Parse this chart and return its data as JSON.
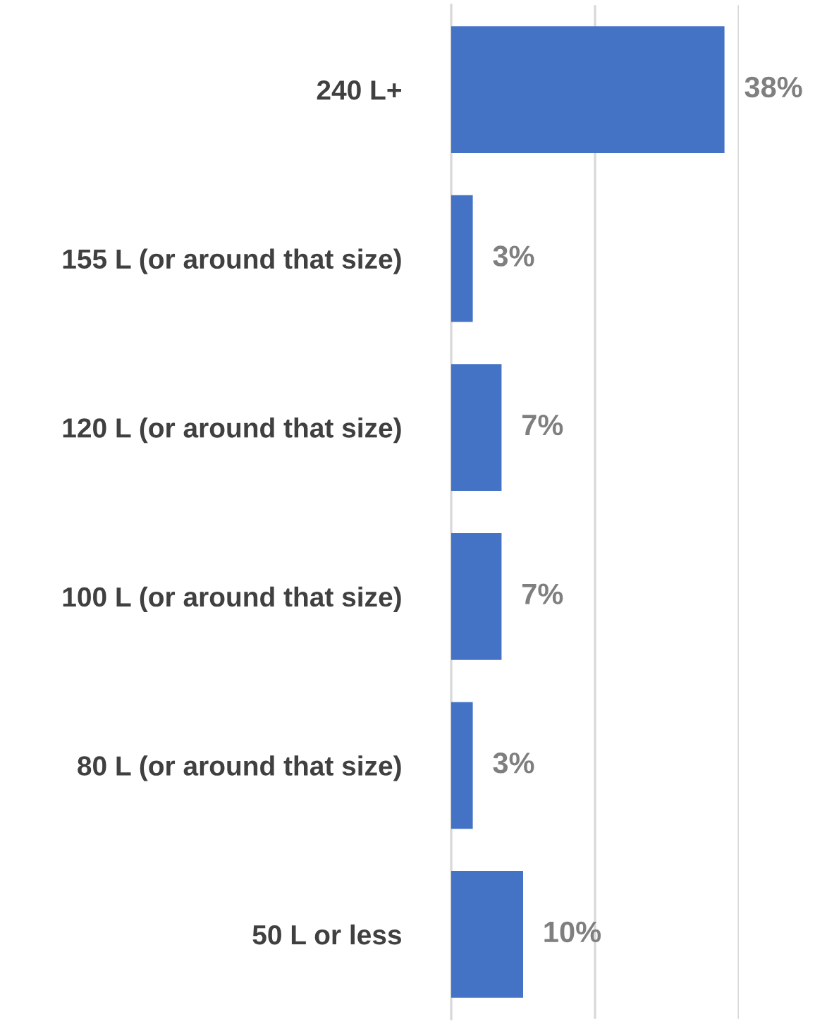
{
  "chart_data": {
    "type": "bar",
    "orientation": "horizontal",
    "categories": [
      "240 L+",
      "155 L (or around that size)",
      "120 L (or around that size)",
      "100 L (or around that size)",
      "80 L (or around that size)",
      "50 L or less"
    ],
    "values": [
      38,
      3,
      7,
      7,
      3,
      10
    ],
    "value_labels": [
      "38%",
      "3%",
      "7%",
      "7%",
      "3%",
      "10%"
    ],
    "color": "#4472c4",
    "ref_lines": [
      {
        "axis": "x",
        "value": 20,
        "label": null,
        "color": "#d9d9d9"
      },
      {
        "axis": "x",
        "value": 40,
        "label": null,
        "color": "#d9d9d9"
      }
    ],
    "tick_labels": "y",
    "legend": false
  }
}
